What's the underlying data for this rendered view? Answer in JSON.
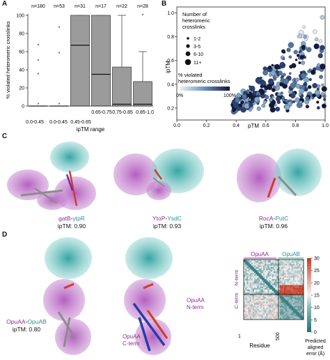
{
  "panels": {
    "a": "A",
    "b": "B",
    "c": "C",
    "d": "D"
  },
  "chart_data": [
    {
      "type": "bar",
      "categories": [
        "0.0-0.45",
        "0.0-0.45",
        "0.45-0.65",
        "0.65-0.75",
        "0.75-0.85",
        "0.85-1.0"
      ],
      "counts": [
        "n=180",
        "n=53",
        "n=31",
        "n=17",
        "n=22",
        "n=28"
      ],
      "boxes": [
        {
          "min": 0,
          "q1": 0,
          "median": 0,
          "q3": 0,
          "max": 0,
          "outliers": [
            67,
            50,
            35,
            2
          ]
        },
        {
          "min": 0,
          "q1": 0,
          "median": 0,
          "q3": 0,
          "max": 0,
          "outliers": [
            86,
            58,
            2
          ]
        },
        {
          "min": 0,
          "q1": 0,
          "median": 67,
          "q3": 100,
          "max": 100,
          "outliers": []
        },
        {
          "min": 0,
          "q1": 0,
          "median": 35,
          "q3": 100,
          "max": 100,
          "outliers": []
        },
        {
          "min": 0,
          "q1": 0,
          "median": 2,
          "q3": 43,
          "max": 100,
          "outliers": []
        },
        {
          "min": 0,
          "q1": 0,
          "median": 2,
          "q3": 27,
          "max": 60,
          "outliers": [
            100
          ]
        }
      ],
      "ylabel": "% violated heteromeric crosslinks",
      "xlabel": "ipTM range",
      "ylim": [
        0,
        100
      ],
      "yticks": [
        "0",
        "20",
        "40",
        "60",
        "80",
        "100"
      ]
    },
    {
      "type": "scatter",
      "xlabel": "pTM",
      "ylabel": "ipTM",
      "xlim": [
        0.0,
        1.0
      ],
      "ylim": [
        0.1,
        1.05
      ],
      "xticks": [
        "0.0",
        "0.2",
        "0.4",
        "0.6",
        "0.8",
        "1.0"
      ],
      "yticks": [
        "0.2",
        "0.4",
        "0.6",
        "0.8",
        "1.0"
      ],
      "legend_size_title": "Number of heteromeric crosslinks",
      "legend_size_title_lines": [
        "Number of",
        "heteromeric",
        "crosslinks"
      ],
      "legend_sizes": [
        "1-2",
        "3-5",
        "6-10",
        "11+"
      ],
      "legend_color_title_lines": [
        "% violated",
        "heteromeric crosslinks"
      ],
      "legend_color_ticks": [
        "0%",
        "100%"
      ],
      "colors": {
        "low": "#dfeaf3",
        "mid": "#5f89b1",
        "high": "#131a3a"
      }
    }
  ],
  "panel_c": {
    "structures": [
      {
        "protein1": "gatB",
        "protein2": "ytpR",
        "iptm": "ipTM: 0.90"
      },
      {
        "protein1": "YtoP",
        "protein2": "YsdC",
        "iptm": "ipTM: 0.93"
      },
      {
        "protein1": "RocA",
        "protein2": "PutC",
        "iptm": "ipTM: 0.96"
      }
    ],
    "separator": "-"
  },
  "panel_d": {
    "complex_protein1": "OpuAA",
    "complex_protein2": "OpuAB",
    "separator": "-",
    "iptm": "ipTM: 0.80",
    "nterm_label_line1": "OpuAA",
    "nterm_label_line2": "N-term",
    "cterm_label_line1": "OpuAA",
    "cterm_label_line2": "C-term",
    "pae": {
      "col_header_1": "OpuAA",
      "col_header_2": "OpuAB",
      "row_label_nterm": "N-term",
      "row_label_cterm": "C-term",
      "xlabel": "Residue",
      "tick_start": "1",
      "tick_500": "500",
      "colorbar_ticks": [
        "0",
        "5",
        "10",
        "15",
        "20",
        "25",
        "30"
      ],
      "colorbar_label_lines": [
        "Predicted",
        "aligned",
        "error (Å)"
      ]
    }
  },
  "colors": {
    "purple": "#8a2e96",
    "teal": "#2a9a9a",
    "red": "#d33a2c",
    "blue": "#2a3aa8",
    "grey": "#8c8c8c"
  }
}
